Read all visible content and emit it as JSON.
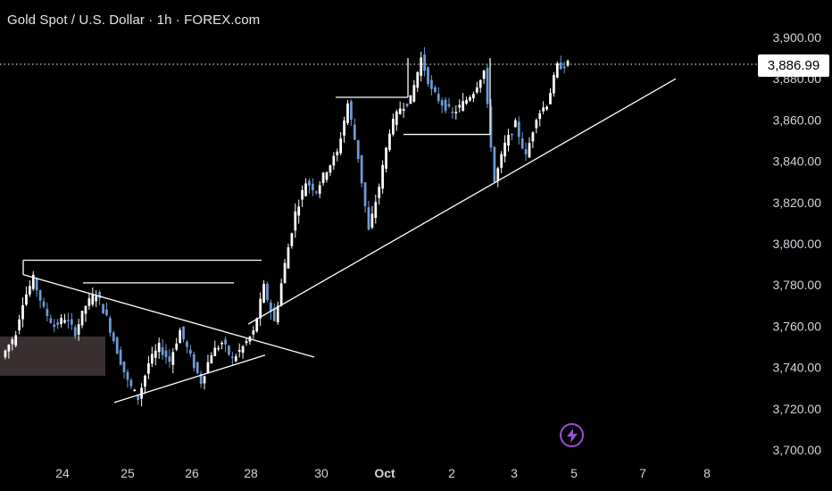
{
  "header": {
    "title": "Gold Spot / U.S. Dollar · 1h · FOREX.com"
  },
  "last_price_label": "3,886.99",
  "colors": {
    "background": "#000000",
    "candle": "#ffffff",
    "candle_alt": "#6f9ad8",
    "drawing": "#ffffff",
    "zone": "#3a2f30",
    "indicator": "#9c4fd6"
  },
  "icons": {
    "indicator": "lightning-bolt-icon"
  },
  "chart_data": {
    "type": "candlestick",
    "title": "Gold Spot / U.S. Dollar · 1h · FOREX.com",
    "ylim": [
      3700,
      3900
    ],
    "y_ticks": [
      "3,700.00",
      "3,720.00",
      "3,740.00",
      "3,760.00",
      "3,780.00",
      "3,800.00",
      "3,820.00",
      "3,840.00",
      "3,860.00",
      "3,880.00",
      "3,900.00"
    ],
    "x_ticks": [
      "24",
      "25",
      "26",
      "28",
      "30",
      "Oct",
      "2",
      "3",
      "5",
      "7",
      "8"
    ],
    "last_price": 3886.99,
    "price_path": [
      [
        3745,
        3754
      ],
      [
        3750,
        3772
      ],
      [
        3772,
        3783
      ],
      [
        3783,
        3768
      ],
      [
        3768,
        3760
      ],
      [
        3760,
        3764
      ],
      [
        3764,
        3757
      ],
      [
        3757,
        3770
      ],
      [
        3770,
        3776
      ],
      [
        3776,
        3764
      ],
      [
        3764,
        3748
      ],
      [
        3748,
        3733
      ],
      [
        3733,
        3725
      ],
      [
        3725,
        3742
      ],
      [
        3742,
        3750
      ],
      [
        3750,
        3743
      ],
      [
        3743,
        3758
      ],
      [
        3758,
        3745
      ],
      [
        3745,
        3733
      ],
      [
        3733,
        3747
      ],
      [
        3747,
        3752
      ],
      [
        3752,
        3744
      ],
      [
        3744,
        3750
      ],
      [
        3750,
        3757
      ],
      [
        3757,
        3779
      ],
      [
        3779,
        3762
      ],
      [
        3762,
        3790
      ],
      [
        3790,
        3815
      ],
      [
        3815,
        3830
      ],
      [
        3830,
        3826
      ],
      [
        3826,
        3836
      ],
      [
        3836,
        3844
      ],
      [
        3844,
        3868
      ],
      [
        3868,
        3842
      ],
      [
        3842,
        3806
      ],
      [
        3806,
        3828
      ],
      [
        3828,
        3855
      ],
      [
        3855,
        3866
      ],
      [
        3866,
        3870
      ],
      [
        3870,
        3890
      ],
      [
        3890,
        3874
      ],
      [
        3874,
        3868
      ],
      [
        3868,
        3863
      ],
      [
        3863,
        3868
      ],
      [
        3868,
        3874
      ],
      [
        3874,
        3884
      ],
      [
        3884,
        3830
      ],
      [
        3830,
        3848
      ],
      [
        3848,
        3858
      ],
      [
        3858,
        3842
      ],
      [
        3842,
        3862
      ],
      [
        3862,
        3868
      ],
      [
        3868,
        3886
      ],
      [
        3886,
        3887
      ]
    ],
    "annotations": {
      "support_zone": [
        3736,
        3755
      ],
      "levels": [
        3792,
        3781,
        3871,
        3853
      ],
      "trendlines": "ascending trendline from Sep 28 low; converging triangle Sep 24–27"
    }
  }
}
